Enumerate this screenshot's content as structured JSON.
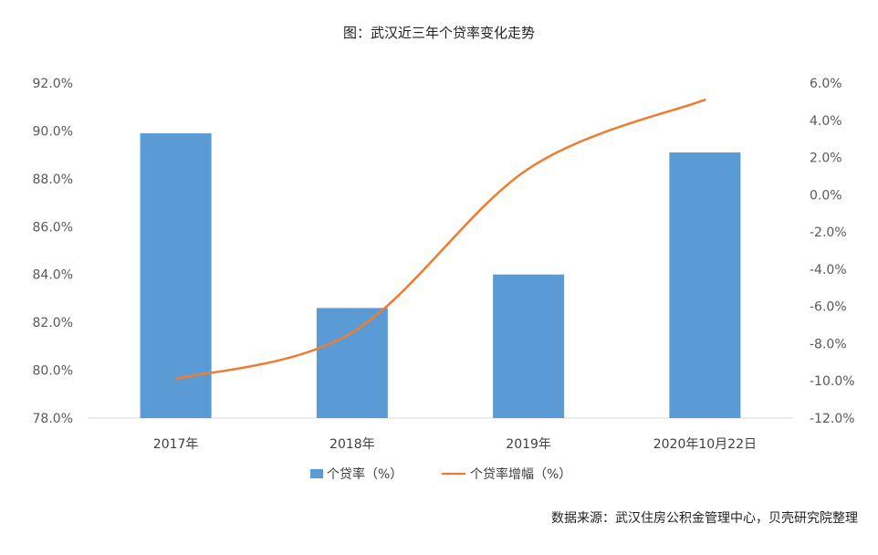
{
  "chart_data": {
    "type": "bar+line",
    "title": "图：武汉近三年个贷率变化走势",
    "categories": [
      "2017年",
      "2018年",
      "2019年",
      "2020年10月22日"
    ],
    "series": [
      {
        "name": "个贷率（%）",
        "type": "bar",
        "axis": "left",
        "color": "#5B9BD5",
        "values": [
          89.9,
          82.6,
          84.0,
          89.1
        ]
      },
      {
        "name": "个贷率增幅（%）",
        "type": "line",
        "axis": "right",
        "color": "#ED7D31",
        "values": [
          -9.9,
          -7.4,
          1.4,
          5.1
        ]
      }
    ],
    "y_left": {
      "min": 78,
      "max": 92,
      "step": 2,
      "tick_labels": [
        "78.0%",
        "80.0%",
        "82.0%",
        "84.0%",
        "86.0%",
        "88.0%",
        "90.0%",
        "92.0%"
      ]
    },
    "y_right": {
      "min": -12,
      "max": 6,
      "step": 2,
      "tick_labels": [
        "-12.0%",
        "-10.0%",
        "-8.0%",
        "-6.0%",
        "-4.0%",
        "-2.0%",
        "0.0%",
        "2.0%",
        "4.0%",
        "6.0%"
      ]
    },
    "grid": false,
    "legend_position": "bottom",
    "source": "数据来源：武汉住房公积金管理中心，贝壳研究院整理"
  }
}
